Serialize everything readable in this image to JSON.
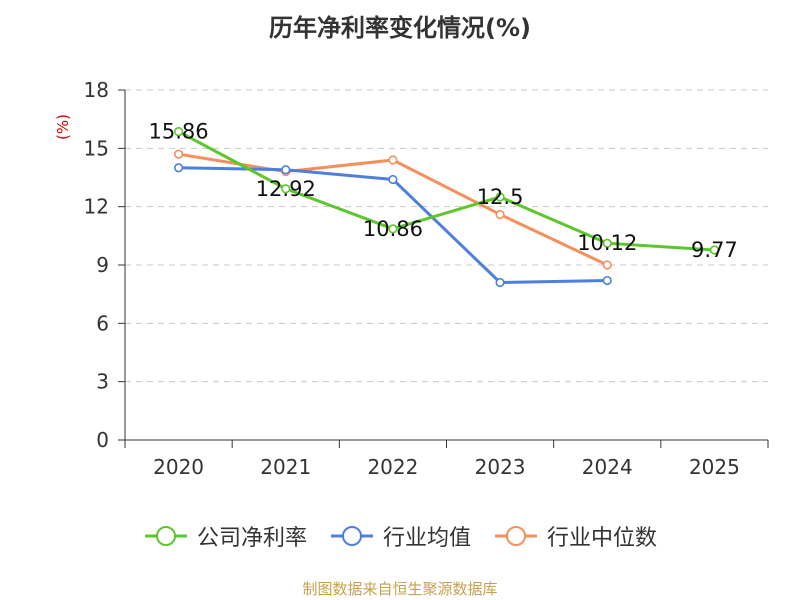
{
  "title": "历年净利率变化情况(%)",
  "source": "制图数据来自恒生聚源数据库",
  "chart_data": {
    "type": "line",
    "title": "历年净利率变化情况(%)",
    "ylabel": "(%)",
    "xlabel": "",
    "ylim": [
      0,
      18
    ],
    "yticks": [
      0,
      3,
      6,
      9,
      12,
      15,
      18
    ],
    "categories": [
      "2020",
      "2021",
      "2022",
      "2023",
      "2024",
      "2025"
    ],
    "grid": true,
    "legend": "bottom",
    "series": [
      {
        "name": "公司净利率",
        "color": "#5cc72a",
        "values": [
          15.86,
          12.92,
          10.86,
          12.5,
          10.12,
          9.77
        ],
        "labels": [
          "15.86",
          "12.92",
          "10.86",
          "12.5",
          "10.12",
          "9.77"
        ]
      },
      {
        "name": "行业均值",
        "color": "#4e7fde",
        "values": [
          14.0,
          13.9,
          13.4,
          8.1,
          8.2,
          null
        ]
      },
      {
        "name": "行业中位数",
        "color": "#f58f5c",
        "values": [
          14.7,
          13.8,
          14.4,
          11.6,
          9.0,
          null
        ]
      }
    ]
  }
}
